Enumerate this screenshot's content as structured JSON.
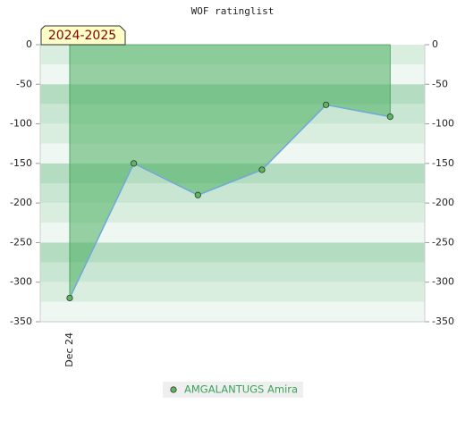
{
  "chart_data": {
    "type": "line",
    "title": "WOF ratinglist",
    "annotation": "2024-2025",
    "categories": [
      "Dec 24",
      null,
      null,
      null,
      null,
      null
    ],
    "series": [
      {
        "name": "AMGALANTUGS Amira",
        "color": "#6fa8dc",
        "marker_color": "#5cb85c",
        "fill_color": "#4caf60",
        "values": [
          -320,
          -150,
          -190,
          -158,
          -76,
          -91
        ]
      }
    ],
    "ylim": [
      -350,
      0
    ],
    "yticks": [
      0,
      -50,
      -100,
      -150,
      -200,
      -250,
      -300,
      -350
    ],
    "legend": "bottom"
  }
}
